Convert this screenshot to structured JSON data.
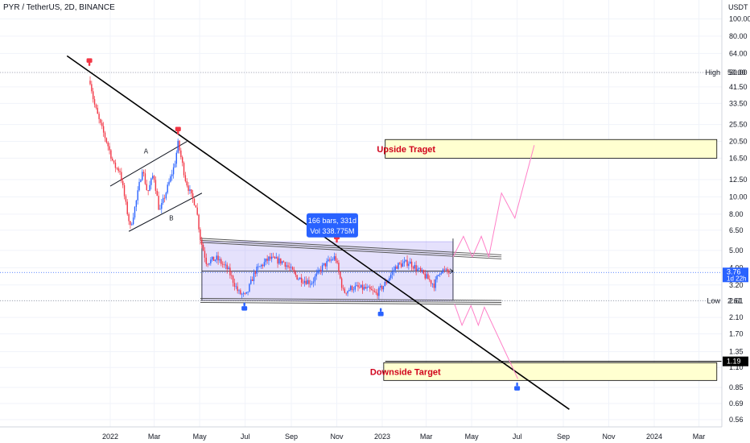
{
  "header": {
    "symbol_line": "PYR / TetherUS, 2D, BINANCE"
  },
  "chart_data": {
    "type": "candlestick",
    "symbol": "PYR / TetherUS",
    "interval": "2D",
    "exchange": "BINANCE",
    "y_scale": "log",
    "y_unit": "USDT",
    "y_ticks": [
      "100.00",
      "80.00",
      "64.00",
      "50.00",
      "41.50",
      "33.50",
      "25.50",
      "20.50",
      "16.50",
      "12.50",
      "10.00",
      "8.00",
      "6.50",
      "5.00",
      "4.00",
      "3.20",
      "2.61",
      "2.10",
      "1.70",
      "1.35",
      "1.10",
      "0.85",
      "0.69",
      "0.56"
    ],
    "x_ticks": [
      "2022",
      "Mar",
      "May",
      "Jul",
      "Sep",
      "Nov",
      "2023",
      "Mar",
      "May",
      "Jul",
      "Sep",
      "Nov",
      "2024",
      "Mar"
    ],
    "ylim": [
      0.5,
      125
    ],
    "price_path": [
      {
        "date": "2021-12-05",
        "price": 45
      },
      {
        "date": "2021-12-10",
        "price": 34
      },
      {
        "date": "2021-12-18",
        "price": 26
      },
      {
        "date": "2021-12-28",
        "price": 20
      },
      {
        "date": "2022-01-06",
        "price": 15
      },
      {
        "date": "2022-01-14",
        "price": 14
      },
      {
        "date": "2022-01-22",
        "price": 9
      },
      {
        "date": "2022-01-28",
        "price": 6.7
      },
      {
        "date": "2022-02-05",
        "price": 9.5
      },
      {
        "date": "2022-02-13",
        "price": 14.5
      },
      {
        "date": "2022-02-20",
        "price": 10.5
      },
      {
        "date": "2022-02-28",
        "price": 13.5
      },
      {
        "date": "2022-03-08",
        "price": 8.2
      },
      {
        "date": "2022-03-18",
        "price": 11
      },
      {
        "date": "2022-03-28",
        "price": 15
      },
      {
        "date": "2022-04-02",
        "price": 20
      },
      {
        "date": "2022-04-12",
        "price": 12.5
      },
      {
        "date": "2022-04-20",
        "price": 10
      },
      {
        "date": "2022-04-26",
        "price": 9
      },
      {
        "date": "2022-05-02",
        "price": 5.8
      },
      {
        "date": "2022-05-10",
        "price": 4.3
      },
      {
        "date": "2022-05-24",
        "price": 4.5
      },
      {
        "date": "2022-06-08",
        "price": 3.9
      },
      {
        "date": "2022-06-22",
        "price": 2.9
      },
      {
        "date": "2022-07-02",
        "price": 2.75
      },
      {
        "date": "2022-07-14",
        "price": 3.8
      },
      {
        "date": "2022-08-02",
        "price": 4.5
      },
      {
        "date": "2022-08-22",
        "price": 4.3
      },
      {
        "date": "2022-09-10",
        "price": 3.5
      },
      {
        "date": "2022-09-28",
        "price": 3.3
      },
      {
        "date": "2022-10-14",
        "price": 4.1
      },
      {
        "date": "2022-10-30",
        "price": 4.6
      },
      {
        "date": "2022-11-04",
        "price": 3.7
      },
      {
        "date": "2022-11-10",
        "price": 2.9
      },
      {
        "date": "2022-11-22",
        "price": 3.1
      },
      {
        "date": "2022-12-10",
        "price": 3.05
      },
      {
        "date": "2022-12-24",
        "price": 2.85
      },
      {
        "date": "2023-01-06",
        "price": 3.3
      },
      {
        "date": "2023-01-20",
        "price": 4.1
      },
      {
        "date": "2023-02-06",
        "price": 4.3
      },
      {
        "date": "2023-02-24",
        "price": 3.7
      },
      {
        "date": "2023-03-12",
        "price": 3.2
      },
      {
        "date": "2023-03-20",
        "price": 3.9
      },
      {
        "date": "2023-04-01",
        "price": 3.76
      }
    ],
    "current_price": 3.76,
    "countdown": "1d 22h",
    "high": {
      "label": "High",
      "price": 50.0
    },
    "low": {
      "label": "Low",
      "price": 2.61
    },
    "marked_level": 1.19,
    "zones": [
      {
        "label": "Upside Traget",
        "from": 16.5,
        "to": 21.0,
        "start": "2023-01-05",
        "end": "2024-03-25"
      },
      {
        "label": "Downside Target",
        "from": 0.93,
        "to": 1.17,
        "start": "2023-01-03",
        "end": "2024-03-25"
      }
    ],
    "trendline": {
      "from": {
        "date": "2021-11-04",
        "price": 62
      },
      "to": {
        "date": "2023-09-09",
        "price": 0.64
      }
    },
    "channel_top": {
      "from": {
        "date": "2022-05-02",
        "price": 5.7
      },
      "to": {
        "date": "2023-06-10",
        "price": 4.6
      }
    },
    "channel_bottom": {
      "from": {
        "date": "2022-05-02",
        "price": 2.62
      },
      "to": {
        "date": "2023-06-10",
        "price": 2.55
      }
    },
    "triangle_upper": {
      "from": {
        "date": "2022-01-01",
        "price": 11.5
      },
      "to": {
        "date": "2022-04-14",
        "price": 20.5
      }
    },
    "triangle_lower": {
      "from": {
        "date": "2022-01-26",
        "price": 6.4
      },
      "to": {
        "date": "2022-05-04",
        "price": 10.5
      }
    },
    "point_labels": [
      {
        "text": "A",
        "date": "2022-02-18",
        "price": 17.5
      },
      {
        "text": "B",
        "date": "2022-03-24",
        "price": 7.4
      }
    ],
    "range_box": {
      "from_date": "2022-05-04",
      "to_date": "2023-04-06",
      "low": 2.61,
      "high": 5.6,
      "label_bars": "166 bars, 331d",
      "label_vol": "Vol 338.775M"
    },
    "projection_up": [
      {
        "date": "2023-04-06",
        "price": 4.6
      },
      {
        "date": "2023-04-20",
        "price": 6.0
      },
      {
        "date": "2023-05-02",
        "price": 4.6
      },
      {
        "date": "2023-05-14",
        "price": 6.0
      },
      {
        "date": "2023-05-24",
        "price": 4.6
      },
      {
        "date": "2023-06-10",
        "price": 10.5
      },
      {
        "date": "2023-06-28",
        "price": 7.6
      },
      {
        "date": "2023-07-24",
        "price": 19.5
      }
    ],
    "projection_down": [
      {
        "date": "2023-04-08",
        "price": 2.5
      },
      {
        "date": "2023-04-18",
        "price": 1.9
      },
      {
        "date": "2023-04-30",
        "price": 2.45
      },
      {
        "date": "2023-05-10",
        "price": 1.9
      },
      {
        "date": "2023-05-18",
        "price": 2.4
      },
      {
        "date": "2023-07-02",
        "price": 0.95
      }
    ],
    "markers_down": [
      {
        "date": "2021-12-04",
        "price": 57
      },
      {
        "date": "2022-04-02",
        "price": 23.5
      },
      {
        "date": "2022-11-01",
        "price": 5.8
      }
    ],
    "markers_up": [
      {
        "date": "2022-06-30",
        "price": 2.42
      },
      {
        "date": "2022-12-30",
        "price": 2.25
      },
      {
        "date": "2023-07-01",
        "price": 0.86
      }
    ],
    "colors": {
      "up": "#2962ff",
      "down": "#f23645",
      "zone": "#ffffd0",
      "zone_border": "#000000",
      "range_box": "#7b68ee",
      "channel": "#555555",
      "projection": "#ff80c8",
      "trendline": "#000000",
      "price_tag": "#2962ff"
    }
  }
}
